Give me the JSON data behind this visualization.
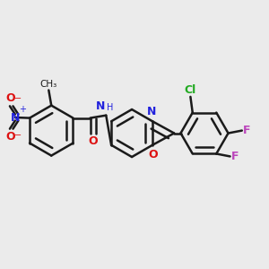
{
  "bg_color": "#ebebeb",
  "bond_color": "#1a1a1a",
  "bond_width": 1.8,
  "dbo": 0.018,
  "figsize": [
    3.0,
    3.0
  ],
  "dpi": 100,
  "xlim": [
    0.0,
    1.0
  ],
  "ylim": [
    0.0,
    1.0
  ],
  "colors": {
    "C": "#1a1a1a",
    "N": "#2222dd",
    "O": "#dd1111",
    "F": "#bb44bb",
    "Cl": "#22aa22",
    "NH": "#2222dd",
    "H": "#2222dd"
  }
}
